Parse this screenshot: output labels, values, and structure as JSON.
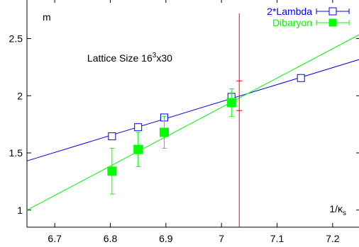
{
  "chart_data": {
    "type": "scatter",
    "ylabel": "m",
    "xlabel_base": "1/κ",
    "xlabel_sub": "s",
    "annotation": {
      "prefix": "Lattice Size 16",
      "sup": "3",
      "suffix": "x30",
      "x": 6.835,
      "y": 2.3
    },
    "xlim": [
      6.65,
      7.25
    ],
    "ylim": [
      0.85,
      2.85
    ],
    "x_ticks": [
      {
        "value": 6.7,
        "label": "6.7"
      },
      {
        "value": 6.8,
        "label": "6.8"
      },
      {
        "value": 6.9,
        "label": "6.9"
      },
      {
        "value": 7.0,
        "label": "7"
      },
      {
        "value": 7.1,
        "label": "7.1"
      },
      {
        "value": 7.2,
        "label": "7.2"
      }
    ],
    "y_ticks": [
      {
        "value": 1.0,
        "label": "1"
      },
      {
        "value": 1.5,
        "label": "1.5"
      },
      {
        "value": 2.0,
        "label": "2"
      },
      {
        "value": 2.5,
        "label": "2.5"
      }
    ],
    "legend_placement": "top-right",
    "series": [
      {
        "name": "2*Lambda",
        "color": "#0000ff",
        "marker": "open-square",
        "points": [
          {
            "x": 6.803,
            "y": 1.645,
            "err": 0.02
          },
          {
            "x": 6.85,
            "y": 1.725,
            "err": 0.02
          },
          {
            "x": 6.897,
            "y": 1.81,
            "err": 0.02
          },
          {
            "x": 7.018,
            "y": 1.99,
            "err": 0.03
          },
          {
            "x": 7.143,
            "y": 2.155,
            "err": 0.02
          }
        ],
        "fit": {
          "x1": 6.65,
          "y1": 1.43,
          "x2": 7.25,
          "y2": 2.32
        }
      },
      {
        "name": "Dibaryon",
        "color": "#00ff00",
        "marker": "filled-square",
        "points": [
          {
            "x": 6.803,
            "y": 1.34,
            "err": 0.2
          },
          {
            "x": 6.85,
            "y": 1.53,
            "err": 0.15
          },
          {
            "x": 6.897,
            "y": 1.68,
            "err": 0.14
          },
          {
            "x": 7.018,
            "y": 1.94,
            "err": 0.12
          }
        ],
        "fit": {
          "x1": 6.65,
          "y1": 1.0,
          "x2": 7.25,
          "y2": 2.54
        }
      }
    ],
    "vertical_marker": {
      "color": "#ff0000",
      "x": 7.032,
      "y_from": 0.85,
      "y_to": 2.72,
      "err_center": 2.0,
      "err": 0.13
    }
  }
}
